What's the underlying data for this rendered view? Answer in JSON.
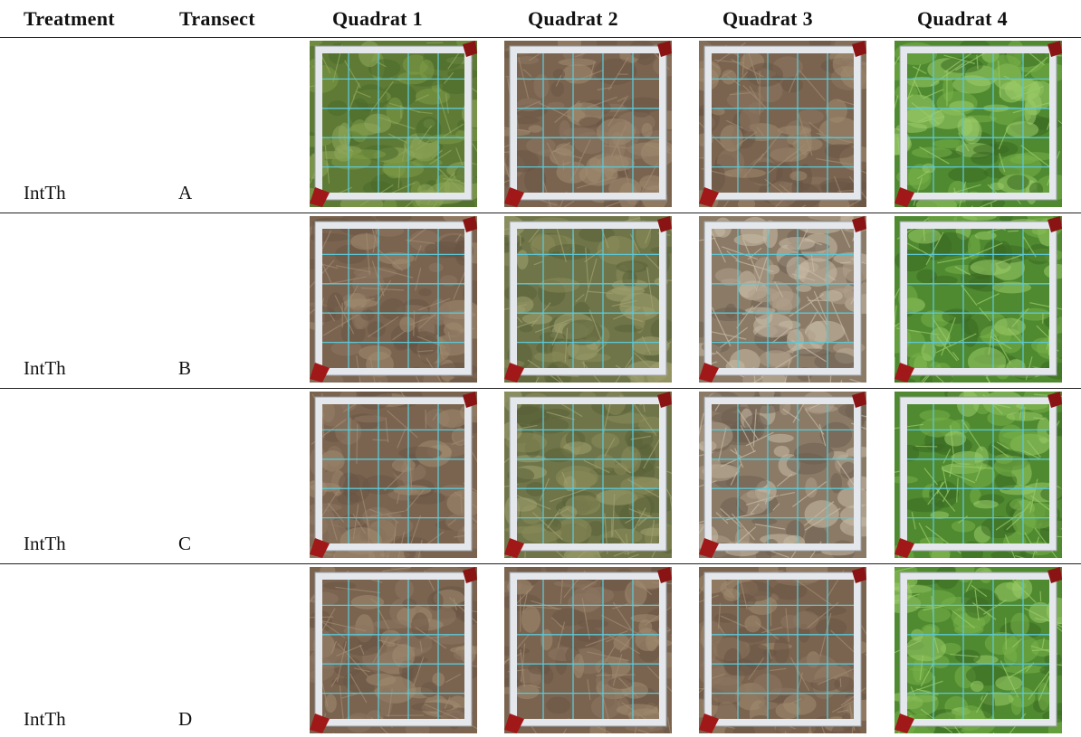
{
  "table": {
    "header": [
      "Treatment",
      "Transect",
      "Quadrat 1",
      "Quadrat 2",
      "Quadrat 3",
      "Quadrat 4"
    ],
    "rows": [
      [
        "IntTh",
        "A"
      ],
      [
        "IntTh",
        "B"
      ],
      [
        "IntTh",
        "C"
      ],
      [
        "IntTh",
        "D"
      ]
    ]
  }
}
